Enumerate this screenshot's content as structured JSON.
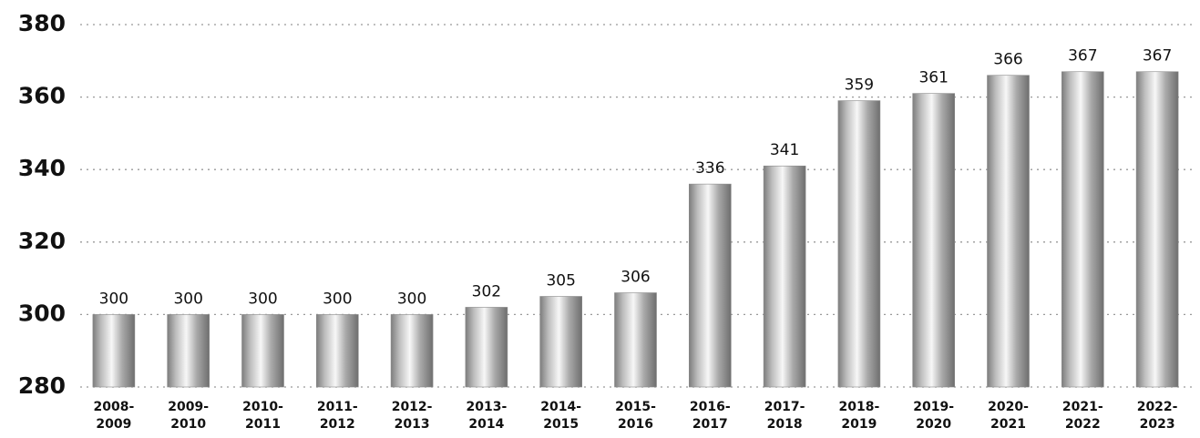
{
  "chart_data": {
    "type": "bar",
    "categories": [
      "2008-2009",
      "2009-2010",
      "2010-2011",
      "2011-2012",
      "2012-2013",
      "2013-2014",
      "2014-2015",
      "2015-2016",
      "2016-2017",
      "2017-2018",
      "2018-2019",
      "2019-2020",
      "2020-2021",
      "2021-2022",
      "2022-2023"
    ],
    "values": [
      300,
      300,
      300,
      300,
      300,
      302,
      305,
      306,
      336,
      341,
      359,
      361,
      366,
      367,
      367
    ],
    "ylim": [
      280,
      380
    ],
    "yticks": [
      280,
      300,
      320,
      340,
      360,
      380
    ],
    "grid": true
  }
}
